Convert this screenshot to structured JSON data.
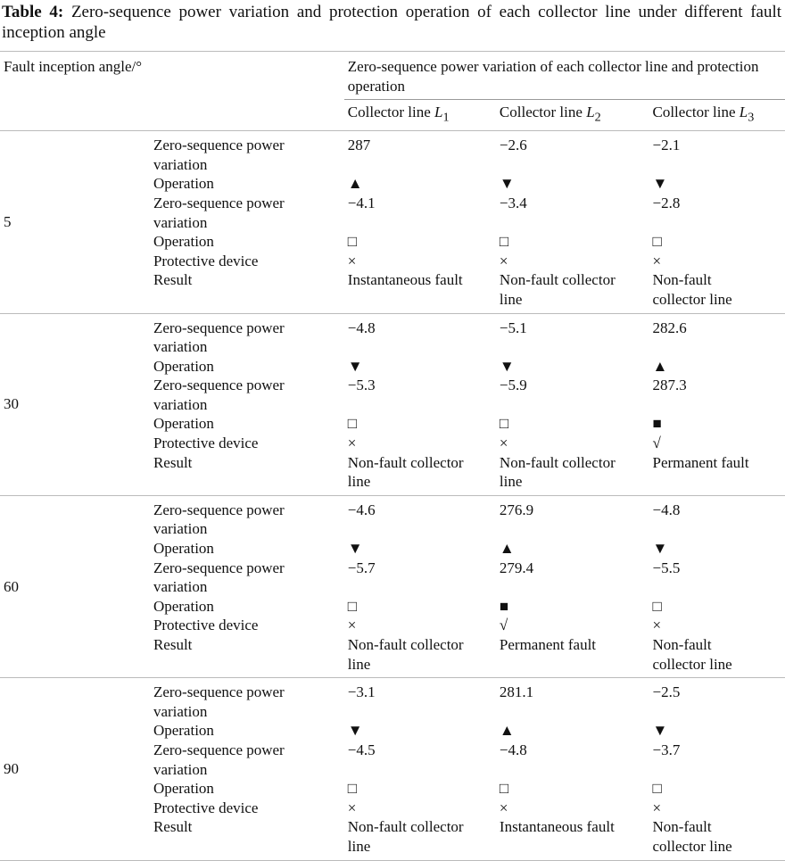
{
  "caption": {
    "label": "Table 4:",
    "text": "Zero-sequence power variation and protection operation of each collector line under different fault inception angle"
  },
  "header": {
    "angle": "Fault inception angle/°",
    "group": "Zero-sequence power variation of each collector line and protection operation",
    "lines": [
      "Collector line L",
      "Collector line L",
      "Collector line L"
    ],
    "subscripts": [
      "1",
      "2",
      "3"
    ]
  },
  "groups": [
    {
      "angle": "5",
      "rows": [
        {
          "label": "Zero-sequence power variation",
          "values": [
            "287",
            "−2.6",
            "−2.1"
          ]
        },
        {
          "label": "Operation",
          "values": [
            "▲",
            "▼",
            "▼"
          ]
        },
        {
          "label": "Zero-sequence power variation",
          "values": [
            "−4.1",
            "−3.4",
            "−2.8"
          ]
        },
        {
          "label": "Operation",
          "values": [
            "□",
            "□",
            "□"
          ]
        },
        {
          "label": "Protective device",
          "values": [
            "×",
            "×",
            "×"
          ]
        },
        {
          "label": "Result",
          "values": [
            "Instantaneous fault",
            "Non-fault collector line",
            "Non-fault collector line"
          ]
        }
      ]
    },
    {
      "angle": "30",
      "rows": [
        {
          "label": "Zero-sequence power variation",
          "values": [
            "−4.8",
            "−5.1",
            "282.6"
          ]
        },
        {
          "label": "Operation",
          "values": [
            "▼",
            "▼",
            "▲"
          ]
        },
        {
          "label": "Zero-sequence power variation",
          "values": [
            "−5.3",
            "−5.9",
            "287.3"
          ]
        },
        {
          "label": "Operation",
          "values": [
            "□",
            "□",
            "■"
          ]
        },
        {
          "label": "Protective device",
          "values": [
            "×",
            "×",
            "√"
          ]
        },
        {
          "label": "Result",
          "values": [
            "Non-fault collector line",
            "Non-fault collector line",
            "Permanent fault"
          ]
        }
      ]
    },
    {
      "angle": "60",
      "rows": [
        {
          "label": "Zero-sequence power variation",
          "values": [
            "−4.6",
            "276.9",
            "−4.8"
          ]
        },
        {
          "label": "Operation",
          "values": [
            "▼",
            "▲",
            "▼"
          ]
        },
        {
          "label": "Zero-sequence power variation",
          "values": [
            "−5.7",
            "279.4",
            "−5.5"
          ]
        },
        {
          "label": "Operation",
          "values": [
            "□",
            "■",
            "□"
          ]
        },
        {
          "label": "Protective device",
          "values": [
            "×",
            "√",
            "×"
          ]
        },
        {
          "label": "Result",
          "values": [
            "Non-fault collector line",
            "Permanent fault",
            "Non-fault collector line"
          ]
        }
      ]
    },
    {
      "angle": "90",
      "rows": [
        {
          "label": "Zero-sequence power variation",
          "values": [
            "−3.1",
            "281.1",
            "−2.5"
          ]
        },
        {
          "label": "Operation",
          "values": [
            "▼",
            "▲",
            "▼"
          ]
        },
        {
          "label": "Zero-sequence power variation",
          "values": [
            "−4.5",
            "−4.8",
            "−3.7"
          ]
        },
        {
          "label": "Operation",
          "values": [
            "□",
            "□",
            "□"
          ]
        },
        {
          "label": "Protective device",
          "values": [
            "×",
            "×",
            "×"
          ]
        },
        {
          "label": "Result",
          "values": [
            "Non-fault collector line",
            "Instantaneous fault",
            "Non-fault collector line"
          ]
        }
      ]
    }
  ]
}
